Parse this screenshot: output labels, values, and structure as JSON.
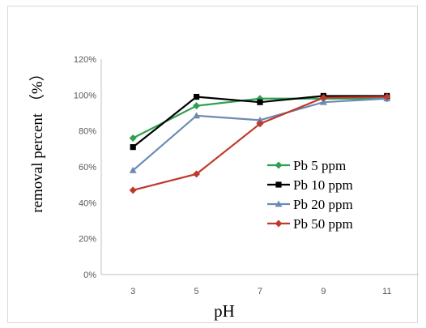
{
  "chart_data": {
    "type": "line",
    "title": "",
    "xlabel": "pH",
    "ylabel": "removal percent （%）",
    "x": [
      3,
      5,
      7,
      9,
      11
    ],
    "x_ticks": [
      "3",
      "5",
      "7",
      "9",
      "11"
    ],
    "ylim": [
      0,
      120
    ],
    "y_ticks": [
      "0%",
      "20%",
      "40%",
      "60%",
      "80%",
      "100%",
      "120%"
    ],
    "grid": false,
    "legend_position": "right",
    "series": [
      {
        "name": "Pb 5 ppm",
        "values": [
          76,
          94,
          98,
          98,
          98
        ],
        "color": "#2ea04f",
        "marker": "diamond"
      },
      {
        "name": "Pb 10 ppm",
        "values": [
          71,
          99,
          96,
          99.5,
          99.5
        ],
        "color": "#000000",
        "marker": "square"
      },
      {
        "name": "Pb 20 ppm",
        "values": [
          58,
          88.5,
          86,
          96,
          98
        ],
        "color": "#6b8bb5",
        "marker": "triangle"
      },
      {
        "name": "Pb 50 ppm",
        "values": [
          47,
          56,
          84,
          98.5,
          99
        ],
        "color": "#c0392b",
        "marker": "diamond"
      }
    ]
  }
}
